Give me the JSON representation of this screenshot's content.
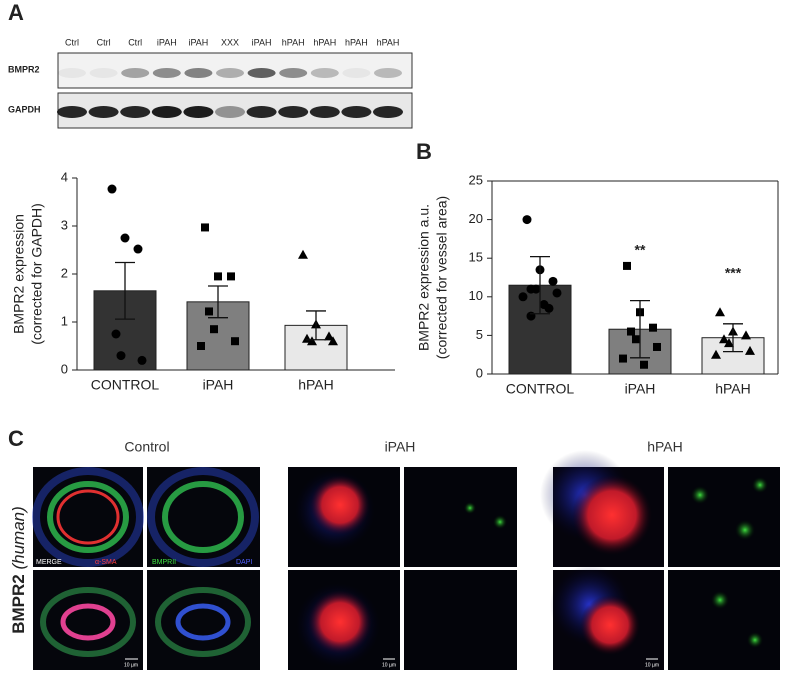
{
  "panel_labels": [
    "A",
    "B",
    "C"
  ],
  "blot": {
    "lanes": [
      "Ctrl",
      "Ctrl",
      "Ctrl",
      "iPAH",
      "iPAH",
      "XXX",
      "iPAH",
      "hPAH",
      "hPAH",
      "hPAH",
      "hPAH"
    ],
    "rows": [
      "BMPR2",
      "GAPDH"
    ]
  },
  "chart_data": [
    {
      "type": "bar",
      "y_label": [
        "BMPR2 expression",
        "(corrected for GAPDH)"
      ],
      "categories": [
        "CONTROL",
        "iPAH",
        "hPAH"
      ],
      "values": [
        1.65,
        1.42,
        0.93
      ],
      "errors": [
        0.59,
        0.33,
        0.3
      ],
      "colors": [
        "#333333",
        "#7f7f7f",
        "#e8e8e8"
      ],
      "markers": [
        "circle",
        "square",
        "triangle"
      ],
      "points": [
        [
          3.77,
          2.75,
          2.52,
          0.75,
          0.3,
          0.2
        ],
        [
          2.97,
          1.95,
          1.95,
          1.22,
          0.85,
          0.6,
          0.5
        ],
        [
          2.4,
          0.95,
          0.7,
          0.65,
          0.6,
          0.6
        ]
      ],
      "ylim": [
        0,
        4
      ],
      "yticks": [
        0,
        1,
        2,
        3,
        4
      ],
      "frame": false
    },
    {
      "type": "bar",
      "y_label": [
        "BMPR2 expression a.u.",
        "(corrected for vessel area)"
      ],
      "categories": [
        "CONTROL",
        "iPAH",
        "hPAH"
      ],
      "values": [
        11.5,
        5.8,
        4.7
      ],
      "errors": [
        3.7,
        3.7,
        1.8
      ],
      "colors": [
        "#333333",
        "#7f7f7f",
        "#e8e8e8"
      ],
      "markers": [
        "circle",
        "square",
        "triangle"
      ],
      "points": [
        [
          20,
          13.5,
          12,
          11,
          11,
          10.5,
          10,
          9,
          8.5,
          7.5
        ],
        [
          14,
          8,
          6,
          5.5,
          4.5,
          3.5,
          2,
          1.2
        ],
        [
          8,
          5.5,
          5,
          4.5,
          4,
          3,
          2.5
        ]
      ],
      "significance": [
        null,
        "**",
        "***"
      ],
      "ylim": [
        0,
        25
      ],
      "yticks": [
        0,
        5,
        10,
        15,
        20,
        25
      ],
      "frame": true
    }
  ],
  "microscopy": {
    "groups": [
      "Control",
      "iPAH",
      "hPAH"
    ],
    "row_label": "BMPR2",
    "row_label_sub": "(human)",
    "channels": [
      "MERGE",
      "α-SMA",
      "BMPRII",
      "DAPI"
    ],
    "scale_bar": "10 µm"
  }
}
